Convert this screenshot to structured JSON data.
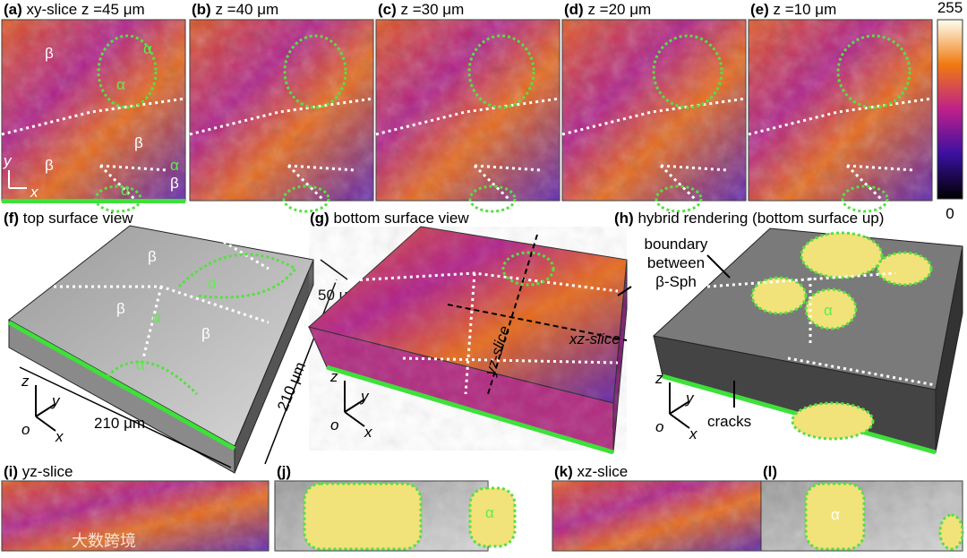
{
  "panels": [
    {
      "label": "(a)",
      "caption": "xy-slice z =45 μm"
    },
    {
      "label": "(b)",
      "caption": "z =40 μm"
    },
    {
      "label": "(c)",
      "caption": "z =30 μm"
    },
    {
      "label": "(d)",
      "caption": "z =20 μm"
    },
    {
      "label": "(e)",
      "caption": "z =10 μm"
    },
    {
      "label": "(f)",
      "caption": "top surface view"
    },
    {
      "label": "(g)",
      "caption": "bottom surface view"
    },
    {
      "label": "(h)",
      "caption": "hybrid rendering (bottom surface up)"
    },
    {
      "label": "(i)",
      "caption": "yz-slice"
    },
    {
      "label": "(j)"
    },
    {
      "label": "(k)",
      "caption": "xz-slice"
    },
    {
      "label": "(l)"
    }
  ],
  "colorbar": {
    "max": "255",
    "min": "0"
  },
  "annotations": {
    "beta": "β",
    "alpha": "α",
    "dim_50": "50 μm",
    "dim_210": "210 μm",
    "boundary": [
      "boundary",
      "between",
      "β-Sph"
    ],
    "cracks": "cracks",
    "yz": "yz-slice",
    "xz": "xz-slice",
    "axis_x": "x",
    "axis_y": "y",
    "axis_z": "z",
    "axis_o": "o"
  },
  "watermark": "大数跨境"
}
